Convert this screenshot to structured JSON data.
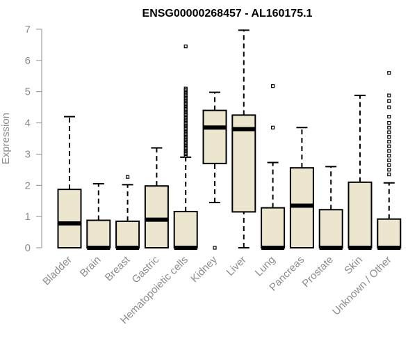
{
  "chart_data": {
    "type": "boxplot",
    "title": "ENSG00000268457 - AL160175.1",
    "xlabel": "",
    "ylabel": "Expression",
    "ylim": [
      0,
      7
    ],
    "yticks": [
      0,
      1,
      2,
      3,
      4,
      5,
      6,
      7
    ],
    "ytick_labels": [
      "0",
      "1",
      "2",
      "3",
      "4",
      "5",
      "6",
      "7"
    ],
    "box_fill": "#ede6cf",
    "categories": [
      "Bladder",
      "Brain",
      "Breast",
      "Gastric",
      "Hematopoietic cells",
      "Kidney",
      "Liver",
      "Lung",
      "Pancreas",
      "Prostate",
      "Skin",
      "Unknown / Other"
    ],
    "boxes": [
      {
        "name": "Bladder",
        "whisker_low": 0,
        "q1": 0,
        "median": 0.78,
        "q3": 1.87,
        "whisker_high": 4.2,
        "outliers": []
      },
      {
        "name": "Brain",
        "whisker_low": 0,
        "q1": 0,
        "median": 0,
        "q3": 0.88,
        "whisker_high": 2.05,
        "outliers": []
      },
      {
        "name": "Breast",
        "whisker_low": 0,
        "q1": 0,
        "median": 0,
        "q3": 0.85,
        "whisker_high": 2.02,
        "outliers": [
          2.27
        ]
      },
      {
        "name": "Gastric",
        "whisker_low": 0,
        "q1": 0,
        "median": 0.9,
        "q3": 1.98,
        "whisker_high": 3.2,
        "outliers": []
      },
      {
        "name": "Hematopoietic cells",
        "whisker_low": 0,
        "q1": 0,
        "median": 0,
        "q3": 1.16,
        "whisker_high": 2.9,
        "outliers": [
          2.95,
          3.0,
          3.05,
          3.1,
          3.15,
          3.2,
          3.25,
          3.3,
          3.35,
          3.4,
          3.45,
          3.5,
          3.55,
          3.6,
          3.65,
          3.7,
          3.75,
          3.8,
          3.85,
          3.9,
          3.95,
          4.0,
          4.05,
          4.1,
          4.15,
          4.2,
          4.25,
          4.3,
          4.35,
          4.4,
          4.45,
          4.5,
          4.55,
          4.6,
          4.65,
          4.7,
          4.75,
          4.8,
          4.85,
          4.9,
          4.95,
          5.0,
          5.05,
          5.1,
          6.45
        ]
      },
      {
        "name": "Kidney",
        "whisker_low": 1.45,
        "q1": 2.7,
        "median": 3.85,
        "q3": 4.4,
        "whisker_high": 4.98,
        "outliers": [
          0
        ]
      },
      {
        "name": "Liver",
        "whisker_low": 0,
        "q1": 1.15,
        "median": 3.8,
        "q3": 4.25,
        "whisker_high": 6.97,
        "outliers": []
      },
      {
        "name": "Lung",
        "whisker_low": 0,
        "q1": 0,
        "median": 0,
        "q3": 1.28,
        "whisker_high": 2.73,
        "outliers": [
          3.85,
          5.18
        ]
      },
      {
        "name": "Pancreas",
        "whisker_low": 0,
        "q1": 0,
        "median": 1.35,
        "q3": 2.56,
        "whisker_high": 3.85,
        "outliers": []
      },
      {
        "name": "Prostate",
        "whisker_low": 0,
        "q1": 0,
        "median": 0,
        "q3": 1.22,
        "whisker_high": 2.6,
        "outliers": []
      },
      {
        "name": "Skin",
        "whisker_low": 0,
        "q1": 0,
        "median": 0,
        "q3": 2.1,
        "whisker_high": 4.88,
        "outliers": []
      },
      {
        "name": "Unknown / Other",
        "whisker_low": 0,
        "q1": 0,
        "median": 0,
        "q3": 0.92,
        "whisker_high": 2.08,
        "outliers": [
          2.35,
          2.5,
          2.65,
          2.8,
          2.95,
          3.1,
          3.25,
          3.4,
          3.55,
          3.7,
          3.85,
          4.0,
          4.2,
          4.5,
          4.7,
          4.88,
          5.6
        ]
      }
    ]
  }
}
